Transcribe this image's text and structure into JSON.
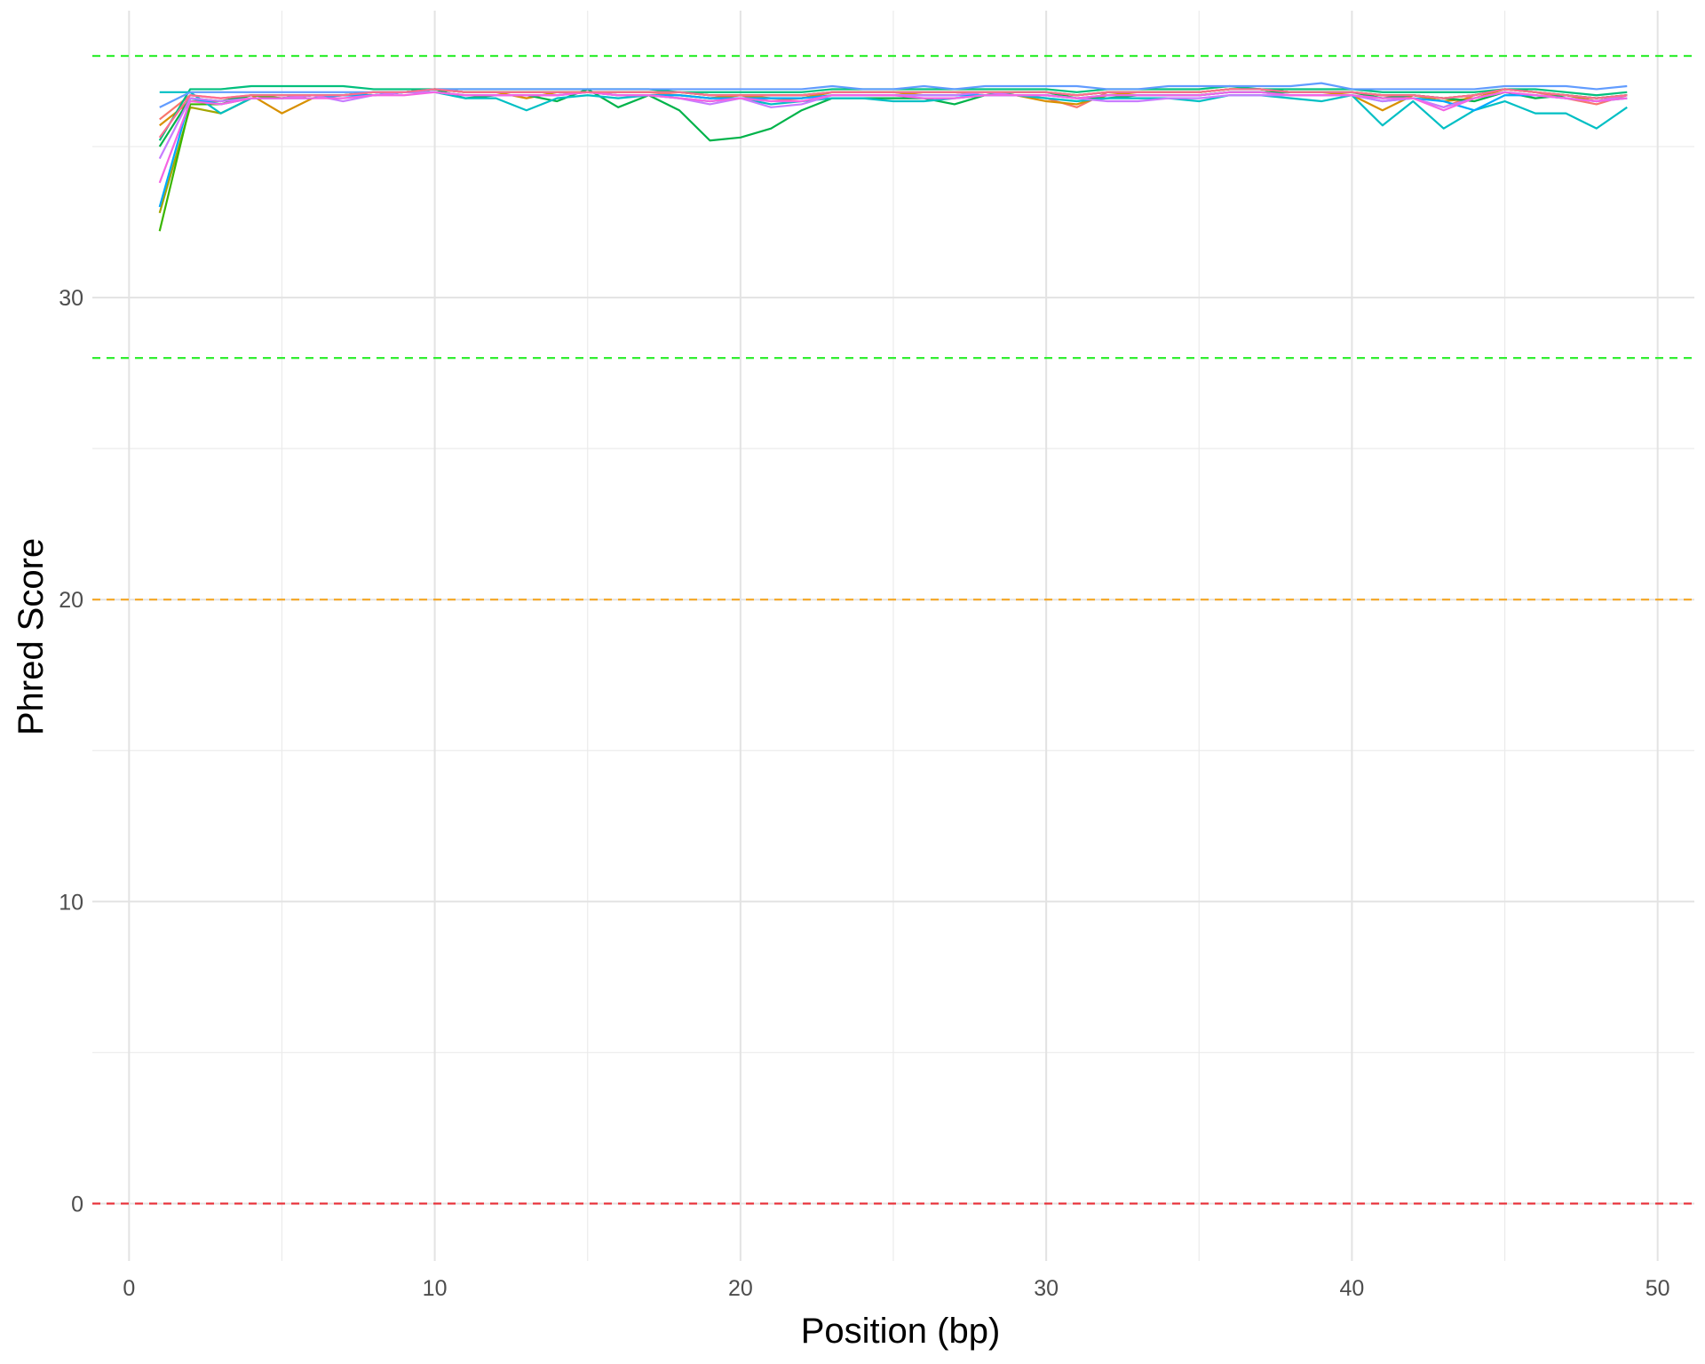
{
  "chart_data": {
    "type": "line",
    "title": "",
    "xlabel": "Position (bp)",
    "ylabel": "Phred Score",
    "xlim": [
      -1.2,
      51.2
    ],
    "ylim": [
      -1.9,
      39.5
    ],
    "x_ticks": [
      0,
      10,
      20,
      30,
      40,
      50
    ],
    "y_ticks": [
      0,
      10,
      20,
      30
    ],
    "grid": true,
    "legend": "none",
    "reference_lines": [
      {
        "y": 38,
        "color": "#33ee33",
        "style": "dashed"
      },
      {
        "y": 28,
        "color": "#33ee33",
        "style": "dashed"
      },
      {
        "y": 20,
        "color": "#f5a623",
        "style": "dashed"
      },
      {
        "y": 0,
        "color": "#e8343c",
        "style": "dashed"
      }
    ],
    "x": [
      1,
      2,
      3,
      4,
      5,
      6,
      7,
      8,
      9,
      10,
      11,
      12,
      13,
      14,
      15,
      16,
      17,
      18,
      19,
      20,
      21,
      22,
      23,
      24,
      25,
      26,
      27,
      28,
      29,
      30,
      31,
      32,
      33,
      34,
      35,
      36,
      37,
      38,
      39,
      40,
      41,
      42,
      43,
      44,
      45,
      46,
      47,
      48,
      49
    ],
    "series": [
      {
        "color": "#f8766d",
        "values": [
          35.9,
          36.7,
          36.6,
          36.7,
          36.6,
          36.7,
          36.7,
          36.8,
          36.8,
          36.9,
          36.8,
          36.8,
          36.8,
          36.8,
          36.8,
          36.8,
          36.8,
          36.7,
          36.6,
          36.7,
          36.5,
          36.6,
          36.8,
          36.8,
          36.8,
          36.7,
          36.7,
          36.8,
          36.7,
          36.6,
          36.3,
          36.8,
          36.8,
          36.8,
          36.8,
          36.9,
          36.9,
          36.8,
          36.8,
          36.8,
          36.7,
          36.6,
          36.3,
          36.7,
          36.9,
          36.8,
          36.6,
          36.4,
          36.7
        ]
      },
      {
        "color": "#d89000",
        "values": [
          35.7,
          36.5,
          36.5,
          36.7,
          36.1,
          36.6,
          36.7,
          36.7,
          36.8,
          36.9,
          36.8,
          36.8,
          36.6,
          36.8,
          36.8,
          36.7,
          36.7,
          36.7,
          36.6,
          36.7,
          36.6,
          36.6,
          36.8,
          36.8,
          36.8,
          36.7,
          36.7,
          36.8,
          36.7,
          36.5,
          36.4,
          36.7,
          36.8,
          36.8,
          36.8,
          36.9,
          36.9,
          36.8,
          36.8,
          36.7,
          36.2,
          36.7,
          36.5,
          36.6,
          36.9,
          36.8,
          36.7,
          36.5,
          36.7
        ]
      },
      {
        "color": "#a3a500",
        "values": [
          32.8,
          36.3,
          36.1,
          36.6,
          36.6,
          36.7,
          36.7,
          36.8,
          36.8,
          36.9,
          36.8,
          36.8,
          36.8,
          36.8,
          36.8,
          36.8,
          36.8,
          36.8,
          36.7,
          36.7,
          36.7,
          36.7,
          36.8,
          36.8,
          36.8,
          36.8,
          36.8,
          36.8,
          36.8,
          36.8,
          36.7,
          36.8,
          36.8,
          36.8,
          36.8,
          36.9,
          36.9,
          36.8,
          36.8,
          36.8,
          36.7,
          36.7,
          36.6,
          36.7,
          36.9,
          36.8,
          36.7,
          36.6,
          36.7
        ]
      },
      {
        "color": "#39b600",
        "values": [
          32.2,
          36.4,
          36.4,
          36.7,
          36.6,
          36.7,
          36.7,
          36.8,
          36.8,
          36.9,
          36.8,
          36.8,
          36.8,
          36.8,
          36.8,
          36.8,
          36.8,
          36.8,
          36.7,
          36.7,
          36.7,
          36.7,
          36.8,
          36.8,
          36.8,
          36.8,
          36.8,
          36.8,
          36.8,
          36.8,
          36.7,
          36.8,
          36.8,
          36.8,
          36.8,
          36.9,
          36.9,
          36.8,
          36.8,
          36.8,
          36.7,
          36.7,
          36.6,
          36.7,
          36.9,
          36.8,
          36.7,
          36.6,
          36.7
        ]
      },
      {
        "color": "#00bf7d",
        "values": [
          35.2,
          36.9,
          36.9,
          37.0,
          37.0,
          37.0,
          37.0,
          36.9,
          36.9,
          36.9,
          36.9,
          36.9,
          36.9,
          36.9,
          36.9,
          36.9,
          36.9,
          36.8,
          36.8,
          36.8,
          36.8,
          36.8,
          36.9,
          36.9,
          36.9,
          36.9,
          36.9,
          36.9,
          36.9,
          36.9,
          36.8,
          36.9,
          36.9,
          36.9,
          36.9,
          37.0,
          36.9,
          36.9,
          36.9,
          36.9,
          36.8,
          36.8,
          36.8,
          36.8,
          36.9,
          36.9,
          36.8,
          36.7,
          36.8
        ]
      },
      {
        "color": "#00b34a",
        "values": [
          35.0,
          36.6,
          36.5,
          36.7,
          36.7,
          36.7,
          36.7,
          36.7,
          36.8,
          36.9,
          36.6,
          36.7,
          36.7,
          36.5,
          36.9,
          36.3,
          36.7,
          36.2,
          35.2,
          35.3,
          35.6,
          36.2,
          36.6,
          36.6,
          36.6,
          36.6,
          36.4,
          36.7,
          36.8,
          36.8,
          36.6,
          36.6,
          36.7,
          36.7,
          36.7,
          36.8,
          36.8,
          36.8,
          36.8,
          36.8,
          36.6,
          36.7,
          36.6,
          36.5,
          36.8,
          36.6,
          36.7,
          36.6,
          36.7
        ]
      },
      {
        "color": "#00bfc4",
        "values": [
          36.8,
          36.8,
          36.1,
          36.6,
          36.6,
          36.7,
          36.7,
          36.7,
          36.8,
          36.8,
          36.6,
          36.6,
          36.2,
          36.6,
          36.7,
          36.6,
          36.7,
          36.6,
          36.5,
          36.6,
          36.4,
          36.5,
          36.6,
          36.6,
          36.5,
          36.5,
          36.6,
          36.7,
          36.7,
          36.6,
          36.5,
          36.6,
          36.6,
          36.6,
          36.5,
          36.7,
          36.7,
          36.6,
          36.5,
          36.7,
          35.7,
          36.5,
          35.6,
          36.2,
          36.5,
          36.1,
          36.1,
          35.6,
          36.3
        ]
      },
      {
        "color": "#00a9ff",
        "values": [
          33.0,
          36.6,
          36.4,
          36.6,
          36.6,
          36.6,
          36.7,
          36.7,
          36.8,
          36.8,
          36.7,
          36.7,
          36.7,
          36.7,
          36.8,
          36.7,
          36.7,
          36.7,
          36.6,
          36.6,
          36.6,
          36.6,
          36.7,
          36.7,
          36.7,
          36.7,
          36.7,
          36.7,
          36.7,
          36.7,
          36.6,
          36.7,
          36.7,
          36.7,
          36.7,
          36.8,
          36.8,
          36.7,
          36.7,
          36.7,
          36.5,
          36.6,
          36.5,
          36.2,
          36.7,
          36.7,
          36.6,
          36.5,
          36.6
        ]
      },
      {
        "color": "#619cff",
        "values": [
          36.3,
          36.8,
          36.8,
          36.8,
          36.8,
          36.8,
          36.8,
          36.8,
          36.8,
          36.9,
          36.9,
          36.9,
          36.9,
          36.9,
          36.9,
          36.9,
          36.9,
          36.9,
          36.9,
          36.9,
          36.9,
          36.9,
          37.0,
          36.9,
          36.9,
          37.0,
          36.9,
          37.0,
          37.0,
          37.0,
          37.0,
          36.9,
          36.9,
          37.0,
          37.0,
          37.0,
          37.0,
          37.0,
          37.1,
          36.9,
          36.9,
          36.9,
          36.9,
          36.9,
          37.0,
          37.0,
          37.0,
          36.9,
          37.0
        ]
      },
      {
        "color": "#c77cff",
        "values": [
          34.6,
          36.6,
          36.5,
          36.6,
          36.6,
          36.7,
          36.5,
          36.7,
          36.8,
          36.8,
          36.7,
          36.7,
          36.7,
          36.7,
          36.8,
          36.7,
          36.7,
          36.6,
          36.4,
          36.6,
          36.3,
          36.4,
          36.7,
          36.7,
          36.7,
          36.7,
          36.7,
          36.8,
          36.7,
          36.7,
          36.6,
          36.5,
          36.5,
          36.6,
          36.6,
          36.7,
          36.7,
          36.7,
          36.7,
          36.7,
          36.5,
          36.6,
          36.3,
          36.6,
          36.8,
          36.7,
          36.6,
          36.5,
          36.7
        ]
      },
      {
        "color": "#f564e3",
        "values": [
          33.8,
          36.5,
          36.4,
          36.6,
          36.6,
          36.6,
          36.6,
          36.7,
          36.7,
          36.8,
          36.7,
          36.7,
          36.7,
          36.7,
          36.8,
          36.7,
          36.7,
          36.6,
          36.5,
          36.6,
          36.5,
          36.5,
          36.7,
          36.7,
          36.7,
          36.6,
          36.6,
          36.7,
          36.7,
          36.7,
          36.6,
          36.7,
          36.7,
          36.7,
          36.7,
          36.8,
          36.8,
          36.7,
          36.7,
          36.7,
          36.6,
          36.6,
          36.2,
          36.6,
          36.8,
          36.7,
          36.6,
          36.5,
          36.6
        ]
      },
      {
        "color": "#ff6c91",
        "values": [
          35.3,
          36.7,
          36.6,
          36.7,
          36.7,
          36.7,
          36.7,
          36.8,
          36.8,
          36.9,
          36.8,
          36.8,
          36.8,
          36.8,
          36.8,
          36.8,
          36.8,
          36.8,
          36.7,
          36.7,
          36.7,
          36.7,
          36.8,
          36.8,
          36.8,
          36.8,
          36.8,
          36.8,
          36.8,
          36.8,
          36.7,
          36.8,
          36.8,
          36.8,
          36.8,
          36.9,
          36.9,
          36.8,
          36.8,
          36.8,
          36.7,
          36.7,
          36.6,
          36.7,
          36.9,
          36.8,
          36.7,
          36.6,
          36.7
        ]
      }
    ]
  }
}
